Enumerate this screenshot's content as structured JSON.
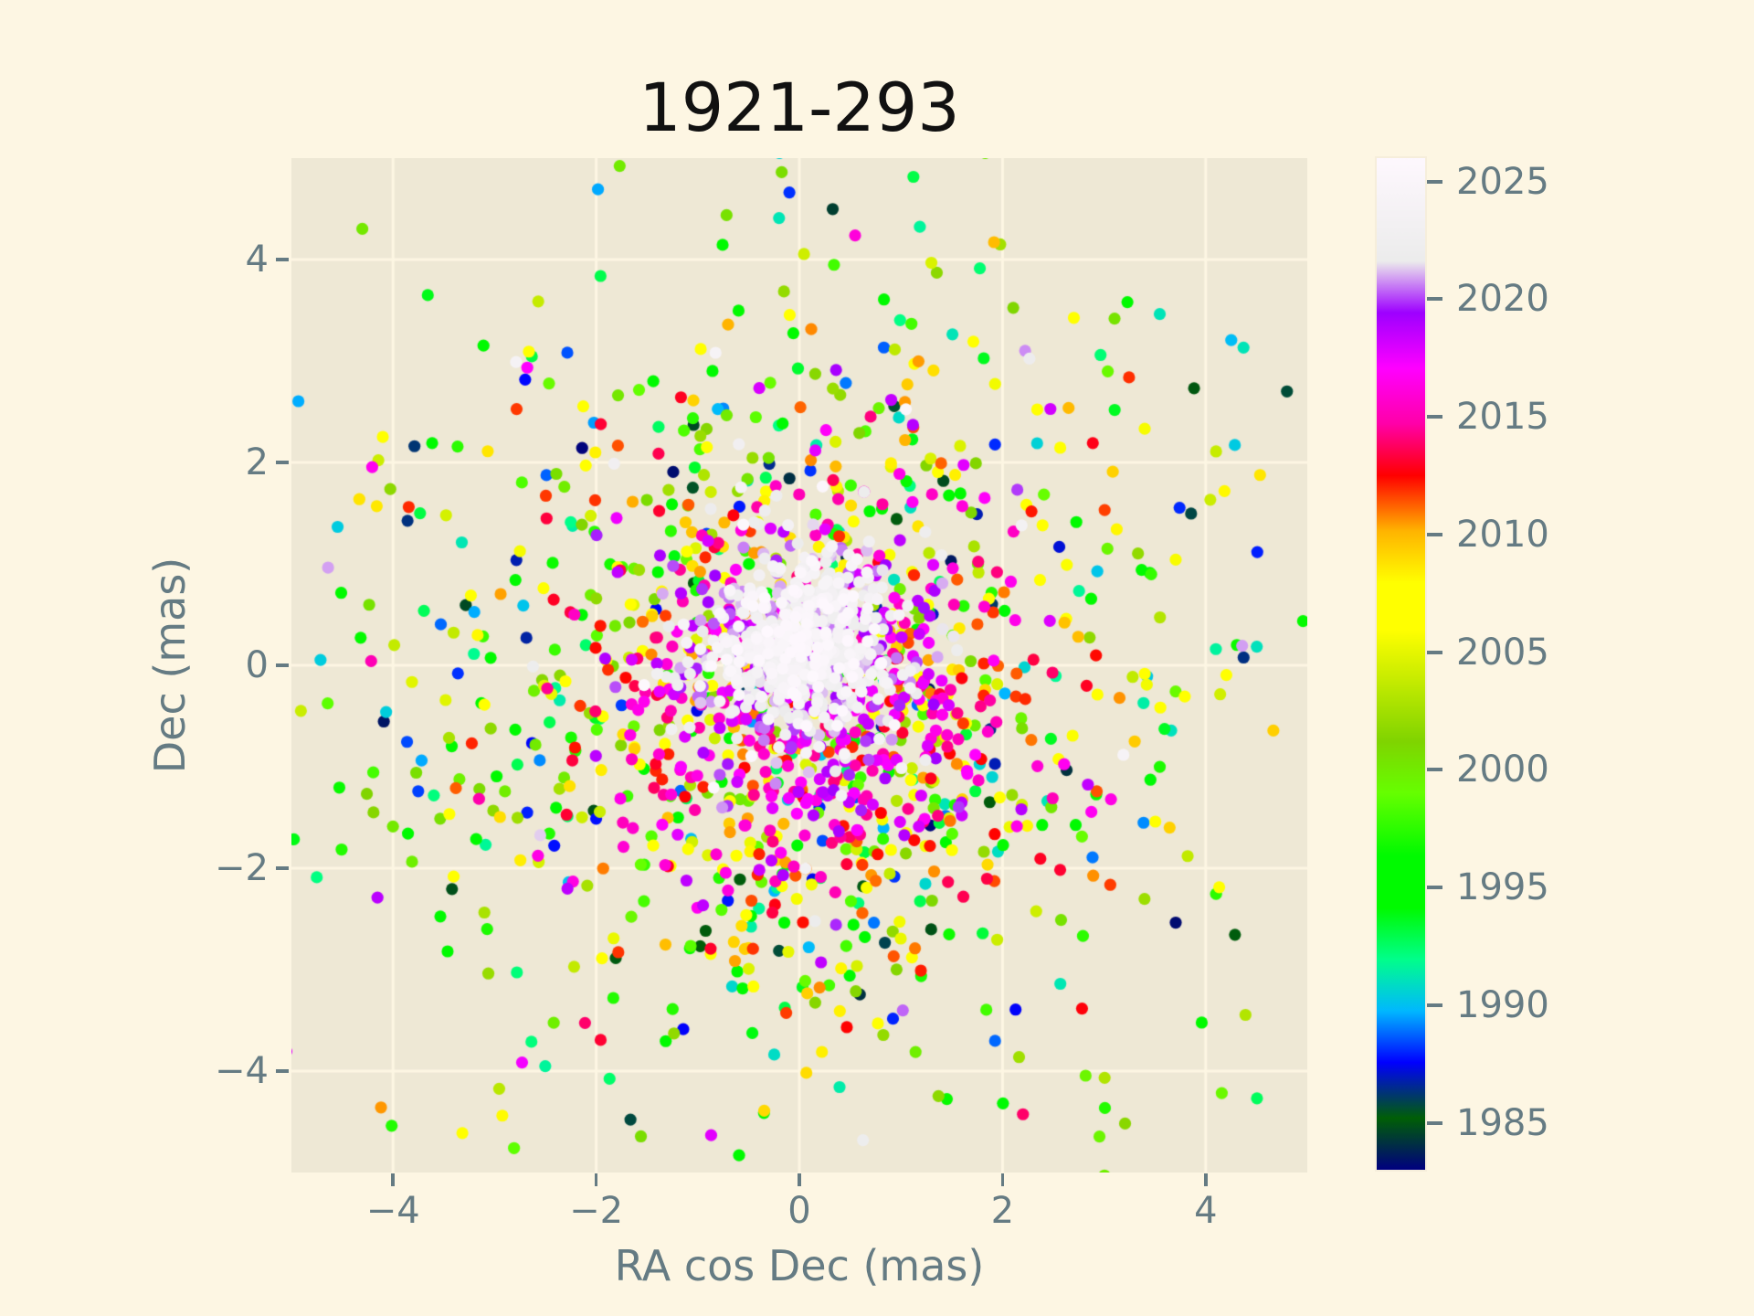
{
  "style": {
    "figure_bg": "#FDF6E3",
    "axes_bg": "#EEE8D5",
    "grid_color": "#FDF6E3",
    "tick_color": "#657b83",
    "label_color": "#657b83",
    "title_color": "#111111"
  },
  "chart_data": {
    "type": "scatter",
    "title": "1921-293",
    "xlabel": "RA cos Dec (mas)",
    "ylabel": "Dec (mas)",
    "xlim": [
      -5,
      5
    ],
    "ylim": [
      -5,
      5
    ],
    "xtick_values": [
      -4,
      -2,
      0,
      2,
      4
    ],
    "xtick_labels": [
      "−4",
      "−2",
      "0",
      "2",
      "4"
    ],
    "ytick_values": [
      -4,
      -2,
      0,
      2,
      4
    ],
    "ytick_labels": [
      "−4",
      "−2",
      "0",
      "2",
      "4"
    ],
    "grid": true,
    "marker": {
      "radius_px": 6.6,
      "alpha": 1.0
    },
    "colorbar": {
      "position": "right",
      "vmin": 1983,
      "vmax": 2026,
      "tick_values": [
        1985,
        1990,
        1995,
        2000,
        2005,
        2010,
        2015,
        2020,
        2025
      ],
      "tick_labels": [
        "1985",
        "1990",
        "1995",
        "2000",
        "2005",
        "2010",
        "2015",
        "2020",
        "2025"
      ],
      "colormap_name": "gist_ncar",
      "stops": [
        {
          "t": 0.0,
          "color": "#000080"
        },
        {
          "t": 0.051,
          "color": "#005F06"
        },
        {
          "t": 0.106,
          "color": "#0000FF"
        },
        {
          "t": 0.157,
          "color": "#00B8FF"
        },
        {
          "t": 0.208,
          "color": "#00FF8B"
        },
        {
          "t": 0.259,
          "color": "#00FA00"
        },
        {
          "t": 0.31,
          "color": "#00FA00"
        },
        {
          "t": 0.3725,
          "color": "#66FF00"
        },
        {
          "t": 0.4235,
          "color": "#80D400"
        },
        {
          "t": 0.5333,
          "color": "#FFFF00"
        },
        {
          "t": 0.5804,
          "color": "#FFFF00"
        },
        {
          "t": 0.6314,
          "color": "#FFB400"
        },
        {
          "t": 0.6863,
          "color": "#FF0000"
        },
        {
          "t": 0.7373,
          "color": "#FF00A8"
        },
        {
          "t": 0.7922,
          "color": "#FF00FF"
        },
        {
          "t": 0.8471,
          "color": "#9E00FF"
        },
        {
          "t": 0.898,
          "color": "#ECECEC"
        },
        {
          "t": 1.0,
          "color": "#FEF8FE"
        }
      ]
    },
    "points_model": {
      "description_of_points": "epoch-colored astrometric position scatter (x = RA cos Dec offset in mas, y = Dec offset in mas, color = observation year); dispersion shrinks with epoch so recent pale-pink/white points form the dense central core",
      "seed": 7,
      "outlier_fraction": 0.07,
      "outlier_sigma_scale": 3.5,
      "groups": [
        {
          "years": [
            1983,
            1990
          ],
          "count": 130,
          "sigma": 2.5,
          "cx": 0.0,
          "cy": -0.1
        },
        {
          "years": [
            1990,
            1997
          ],
          "count": 230,
          "sigma": 2.35,
          "cx": 0.0,
          "cy": -0.2
        },
        {
          "years": [
            1997,
            2004
          ],
          "count": 290,
          "sigma": 2.15,
          "cx": 0.0,
          "cy": -0.3
        },
        {
          "years": [
            2004,
            2010
          ],
          "count": 260,
          "sigma": 1.9,
          "cx": 0.0,
          "cy": -0.35
        },
        {
          "years": [
            2010,
            2014
          ],
          "count": 210,
          "sigma": 1.45,
          "cx": 0.05,
          "cy": -0.45
        },
        {
          "years": [
            2014,
            2017
          ],
          "count": 230,
          "sigma": 1.05,
          "cx": 0.05,
          "cy": -0.4
        },
        {
          "years": [
            2017,
            2020
          ],
          "count": 230,
          "sigma": 0.8,
          "cx": 0.03,
          "cy": -0.15
        },
        {
          "years": [
            2020,
            2022
          ],
          "count": 230,
          "sigma": 0.6,
          "cx": 0.0,
          "cy": 0.1
        },
        {
          "years": [
            2022,
            2024.5
          ],
          "count": 320,
          "sigma": 0.45,
          "cx": -0.02,
          "cy": 0.22
        },
        {
          "years": [
            2024.5,
            2025.9
          ],
          "count": 120,
          "sigma": 0.35,
          "cx": 0.0,
          "cy": 0.25
        }
      ]
    }
  }
}
